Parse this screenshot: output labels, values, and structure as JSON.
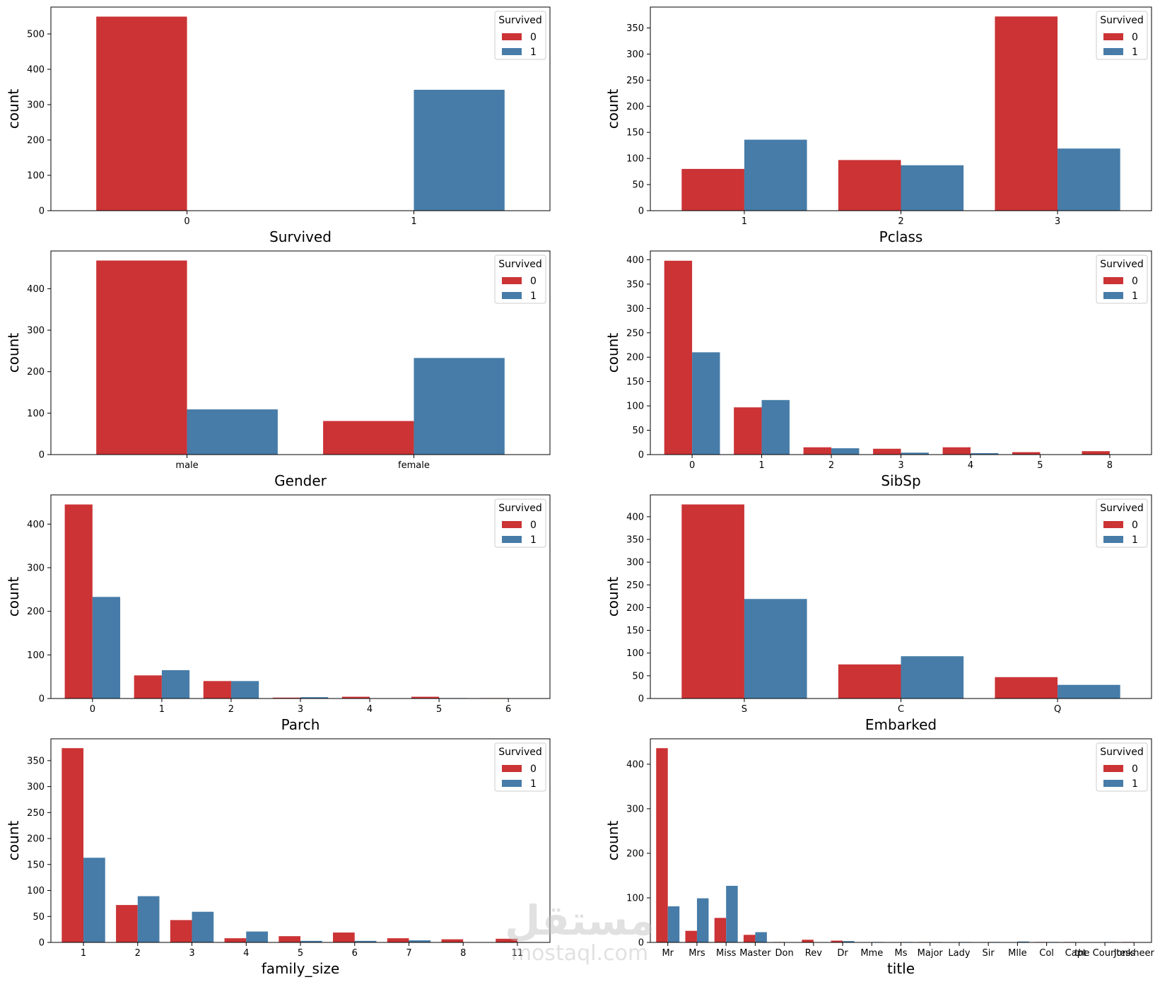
{
  "colors": {
    "survived_0": "#cb3335",
    "survived_1": "#477ca8"
  },
  "watermark": {
    "arabic": "مستقل",
    "latin": "mostaql.com"
  },
  "chart_data": [
    {
      "type": "bar",
      "xlabel": "Survived",
      "ylabel": "count",
      "categories": [
        "0",
        "1"
      ],
      "series": [
        {
          "name": "0",
          "values": [
            549,
            0
          ]
        },
        {
          "name": "1",
          "values": [
            0,
            342
          ]
        }
      ],
      "ylim": [
        0,
        576
      ],
      "yticks": [
        0,
        100,
        200,
        300,
        400,
        500
      ],
      "legend": {
        "title": "Survived",
        "entries": [
          "0",
          "1"
        ],
        "loc": "upper right"
      }
    },
    {
      "type": "bar",
      "xlabel": "Pclass",
      "ylabel": "count",
      "categories": [
        "1",
        "2",
        "3"
      ],
      "series": [
        {
          "name": "0",
          "values": [
            80,
            97,
            372
          ]
        },
        {
          "name": "1",
          "values": [
            136,
            87,
            119
          ]
        }
      ],
      "ylim": [
        0,
        390
      ],
      "yticks": [
        0,
        50,
        100,
        150,
        200,
        250,
        300,
        350
      ],
      "legend": {
        "title": "Survived",
        "entries": [
          "0",
          "1"
        ],
        "loc": "upper right"
      }
    },
    {
      "type": "bar",
      "xlabel": "Gender",
      "ylabel": "count",
      "categories": [
        "male",
        "female"
      ],
      "series": [
        {
          "name": "0",
          "values": [
            468,
            81
          ]
        },
        {
          "name": "1",
          "values": [
            109,
            233
          ]
        }
      ],
      "ylim": [
        0,
        491
      ],
      "yticks": [
        0,
        100,
        200,
        300,
        400
      ],
      "legend": {
        "title": "Survived",
        "entries": [
          "0",
          "1"
        ],
        "loc": "upper right"
      }
    },
    {
      "type": "bar",
      "xlabel": "SibSp",
      "ylabel": "count",
      "categories": [
        "0",
        "1",
        "2",
        "3",
        "4",
        "5",
        "8"
      ],
      "series": [
        {
          "name": "0",
          "values": [
            398,
            97,
            15,
            12,
            15,
            5,
            7
          ]
        },
        {
          "name": "1",
          "values": [
            210,
            112,
            13,
            4,
            3,
            0,
            0
          ]
        }
      ],
      "ylim": [
        0,
        418
      ],
      "yticks": [
        0,
        50,
        100,
        150,
        200,
        250,
        300,
        350,
        400
      ],
      "legend": {
        "title": "Survived",
        "entries": [
          "0",
          "1"
        ],
        "loc": "upper right"
      }
    },
    {
      "type": "bar",
      "xlabel": "Parch",
      "ylabel": "count",
      "categories": [
        "0",
        "1",
        "2",
        "3",
        "4",
        "5",
        "6"
      ],
      "series": [
        {
          "name": "0",
          "values": [
            445,
            53,
            40,
            2,
            4,
            4,
            1
          ]
        },
        {
          "name": "1",
          "values": [
            233,
            65,
            40,
            3,
            0,
            1,
            0
          ]
        }
      ],
      "ylim": [
        0,
        467
      ],
      "yticks": [
        0,
        100,
        200,
        300,
        400
      ],
      "legend": {
        "title": "Survived",
        "entries": [
          "0",
          "1"
        ],
        "loc": "upper right"
      }
    },
    {
      "type": "bar",
      "xlabel": "Embarked",
      "ylabel": "count",
      "categories": [
        "S",
        "C",
        "Q"
      ],
      "series": [
        {
          "name": "0",
          "values": [
            427,
            75,
            47
          ]
        },
        {
          "name": "1",
          "values": [
            219,
            93,
            30
          ]
        }
      ],
      "ylim": [
        0,
        448
      ],
      "yticks": [
        0,
        50,
        100,
        150,
        200,
        250,
        300,
        350,
        400
      ],
      "legend": {
        "title": "Survived",
        "entries": [
          "0",
          "1"
        ],
        "loc": "upper right"
      }
    },
    {
      "type": "bar",
      "xlabel": "family_size",
      "ylabel": "count",
      "categories": [
        "1",
        "2",
        "3",
        "4",
        "5",
        "6",
        "7",
        "8",
        "11"
      ],
      "series": [
        {
          "name": "0",
          "values": [
            374,
            72,
            43,
            8,
            12,
            19,
            8,
            6,
            7
          ]
        },
        {
          "name": "1",
          "values": [
            163,
            89,
            59,
            21,
            3,
            3,
            4,
            0,
            0
          ]
        }
      ],
      "ylim": [
        0,
        392
      ],
      "yticks": [
        0,
        50,
        100,
        150,
        200,
        250,
        300,
        350
      ],
      "legend": {
        "title": "Survived",
        "entries": [
          "0",
          "1"
        ],
        "loc": "upper right"
      }
    },
    {
      "type": "bar",
      "xlabel": "title",
      "ylabel": "count",
      "categories": [
        "Mr",
        "Mrs",
        "Miss",
        "Master",
        "Don",
        "Rev",
        "Dr",
        "Mme",
        "Ms",
        "Major",
        "Lady",
        "Sir",
        "Mlle",
        "Col",
        "Capt",
        "the Countess",
        "Jonkheer"
      ],
      "series": [
        {
          "name": "0",
          "values": [
            436,
            26,
            55,
            17,
            1,
            6,
            4,
            0,
            0,
            1,
            0,
            0,
            0,
            1,
            1,
            0,
            1
          ]
        },
        {
          "name": "1",
          "values": [
            81,
            99,
            127,
            23,
            0,
            0,
            3,
            1,
            1,
            1,
            1,
            1,
            2,
            1,
            0,
            1,
            0
          ]
        }
      ],
      "ylim": [
        0,
        457
      ],
      "yticks": [
        0,
        100,
        200,
        300,
        400
      ],
      "legend": {
        "title": "Survived",
        "entries": [
          "0",
          "1"
        ],
        "loc": "upper right"
      }
    }
  ]
}
